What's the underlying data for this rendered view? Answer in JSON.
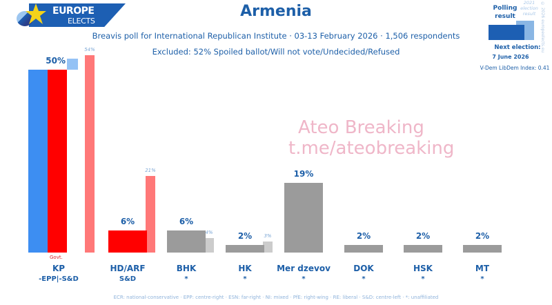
{
  "header": {
    "logo_line1": "EUROPE",
    "logo_line2": "ELECTS",
    "title": "Armenia",
    "subtitle": "Breavis poll for International Republican Institute · 03-13 February 2026 · 1,506 respondents",
    "excluded": "Excluded: 52% Spoiled ballot/Will not vote/Undecided/Refused"
  },
  "legend": {
    "polling_result": "Polling result",
    "election_result": "2021 election result",
    "copyright": "© 2026 europeelects.eu",
    "next_election_label": "Next election:",
    "next_election_date": "7 June 2026",
    "vdem": "V-Dem LibDem Index: 0.41"
  },
  "watermark": {
    "line1": "Ateo Breaking",
    "line2": "t.me/ateobreaking"
  },
  "footer": {
    "text": "ECR: national-conservative · EPP: centre-right · ESN: far-right · NI: mixed · PfE: right-wing · RE: liberal · S&D: centre-left · *: unaffiliated"
  },
  "govt_label": "Govt.",
  "colors": {
    "kp_blue": "#3d8ef2",
    "red": "#ff0000",
    "light_red": "#ff7878",
    "light_blue": "#94c2f5",
    "grey": "#9b9b9b",
    "light_grey": "#cccccc",
    "text_blue": "#1d5fa8"
  },
  "chart_data": {
    "type": "bar",
    "title": "Armenia",
    "subtitle": "Breavis poll for International Republican Institute · 03-13 February 2026 · 1,506 respondents",
    "xlabel": "",
    "ylabel": "",
    "ylim": [
      0,
      60
    ],
    "categories": [
      "KP",
      "HD/ARF",
      "BHK",
      "HK",
      "Mer dzevov",
      "DOK",
      "HSK",
      "MT"
    ],
    "groups": [
      "-EPP|-S&D",
      "S&D",
      "*",
      "*",
      "*",
      "*",
      "*",
      "*"
    ],
    "series": [
      {
        "name": "Polling result",
        "values": [
          50,
          6,
          6,
          2,
          19,
          2,
          2,
          2
        ]
      },
      {
        "name": "2021 election result",
        "values": [
          54,
          21,
          4,
          3,
          null,
          null,
          null,
          null
        ]
      }
    ],
    "labels": [
      "50%",
      "6%",
      "6%",
      "2%",
      "19%",
      "2%",
      "2%",
      "2%"
    ],
    "prev_labels": [
      "54%",
      "21%",
      "4%",
      "3%",
      "",
      "",
      "",
      ""
    ],
    "annotations": [
      "Govt. (KP)"
    ],
    "legend_position": "top-right",
    "grid": false
  }
}
